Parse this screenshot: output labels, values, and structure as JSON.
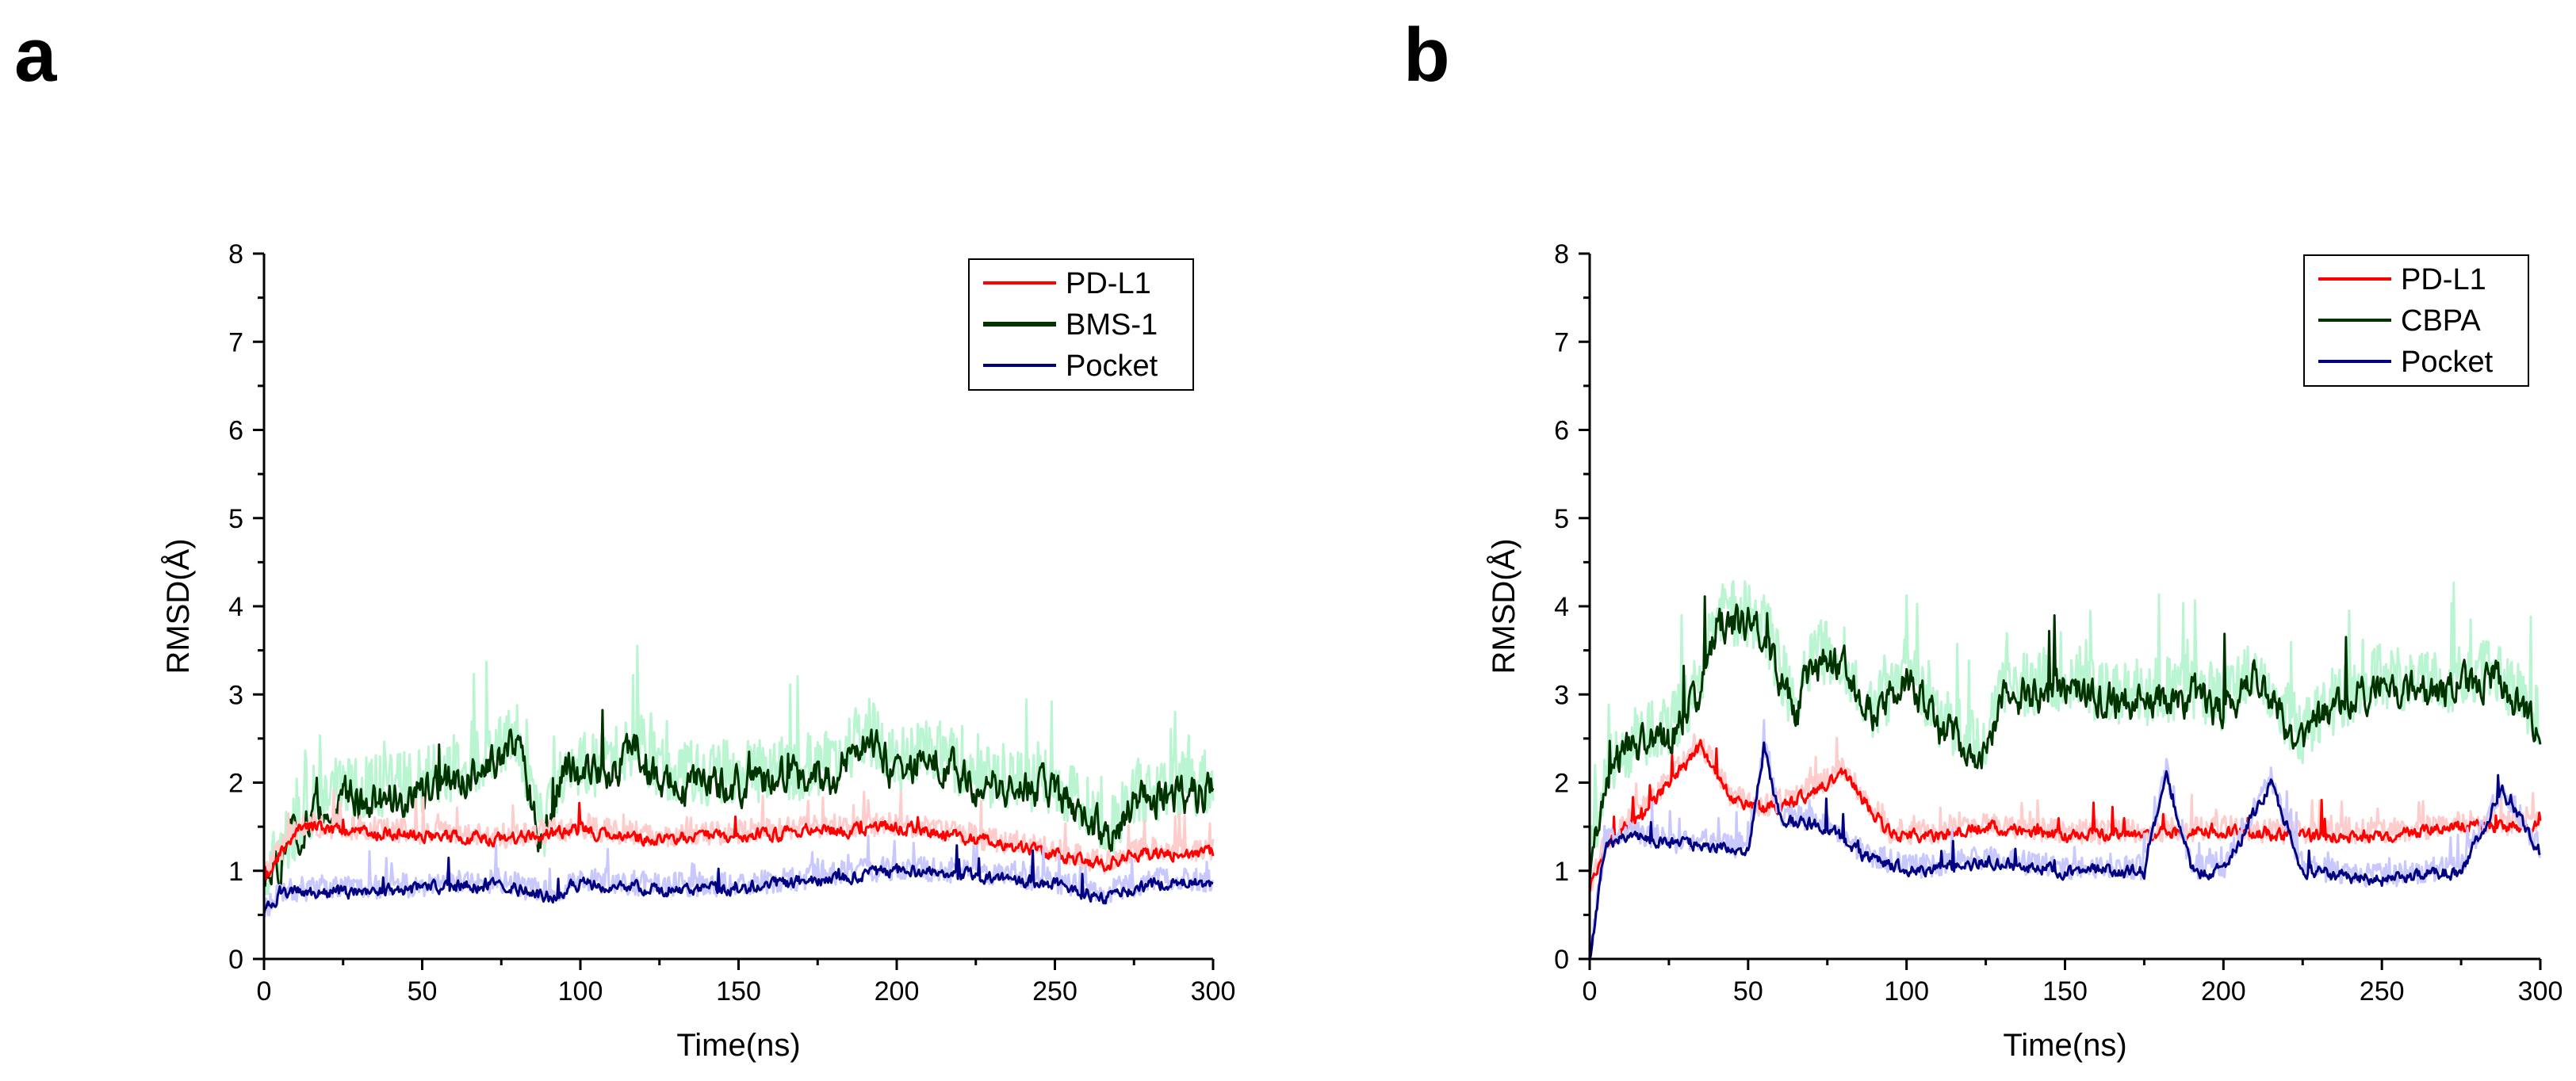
{
  "panel_labels": [
    "a",
    "b"
  ],
  "chart_data": [
    {
      "panel": "a",
      "type": "line",
      "xlabel": "Time(ns)",
      "ylabel": "RMSD(Å)",
      "xlim": [
        0,
        300
      ],
      "ylim": [
        0,
        8
      ],
      "xticks": [
        0,
        50,
        100,
        150,
        200,
        250,
        300
      ],
      "yticks": [
        0,
        1,
        2,
        3,
        4,
        5,
        6,
        7,
        8
      ],
      "grid": false,
      "legend_position": "top-right",
      "series": [
        {
          "name": "PD-L1",
          "color": "#ff0000",
          "band_color": "#ffcccc",
          "x": [
            0,
            5,
            12,
            25,
            50,
            75,
            100,
            125,
            150,
            175,
            200,
            225,
            250,
            265,
            275,
            300
          ],
          "y": [
            0.9,
            1.2,
            1.5,
            1.45,
            1.4,
            1.35,
            1.45,
            1.35,
            1.4,
            1.45,
            1.5,
            1.35,
            1.2,
            1.05,
            1.2,
            1.2
          ]
        },
        {
          "name": "BMS-1",
          "color": "#003300",
          "band_color": "#b8f5d0",
          "x": [
            0,
            5,
            10,
            20,
            25,
            30,
            50,
            70,
            80,
            88,
            95,
            110,
            118,
            125,
            150,
            180,
            190,
            200,
            210,
            225,
            250,
            268,
            275,
            300
          ],
          "y": [
            0.9,
            1.1,
            1.4,
            1.7,
            1.9,
            1.8,
            1.9,
            2.2,
            2.4,
            1.3,
            2.1,
            2.1,
            2.4,
            2.0,
            2.0,
            2.1,
            2.5,
            2.1,
            2.3,
            2.0,
            1.9,
            1.4,
            1.8,
            1.9
          ]
        },
        {
          "name": "Pocket",
          "color": "#000080",
          "band_color": "#c8c8ff",
          "x": [
            0,
            5,
            20,
            50,
            75,
            90,
            100,
            125,
            150,
            175,
            200,
            225,
            250,
            265,
            280,
            300
          ],
          "y": [
            0.5,
            0.75,
            0.75,
            0.8,
            0.85,
            0.7,
            0.85,
            0.8,
            0.8,
            0.9,
            1.0,
            0.95,
            0.85,
            0.7,
            0.85,
            0.85
          ]
        }
      ]
    },
    {
      "panel": "b",
      "type": "line",
      "xlabel": "Time(ns)",
      "ylabel": "RMSD(Å)",
      "xlim": [
        0,
        300
      ],
      "ylim": [
        0,
        8
      ],
      "xticks": [
        0,
        50,
        100,
        150,
        200,
        250,
        300
      ],
      "yticks": [
        0,
        1,
        2,
        3,
        4,
        5,
        6,
        7,
        8
      ],
      "grid": false,
      "legend_position": "top-right",
      "series": [
        {
          "name": "PD-L1",
          "color": "#ff0000",
          "band_color": "#ffcccc",
          "x": [
            0,
            5,
            15,
            25,
            35,
            45,
            55,
            65,
            80,
            95,
            110,
            125,
            150,
            175,
            200,
            215,
            230,
            250,
            275,
            300
          ],
          "y": [
            0.8,
            1.3,
            1.6,
            2.0,
            2.4,
            1.8,
            1.7,
            1.8,
            2.1,
            1.4,
            1.4,
            1.5,
            1.4,
            1.4,
            1.45,
            1.4,
            1.4,
            1.4,
            1.5,
            1.5
          ]
        },
        {
          "name": "CBPA",
          "color": "#003300",
          "band_color": "#b8f5d0",
          "x": [
            0,
            5,
            15,
            25,
            35,
            40,
            50,
            55,
            65,
            70,
            80,
            90,
            100,
            110,
            125,
            130,
            150,
            175,
            190,
            200,
            210,
            225,
            230,
            240,
            250,
            270,
            285,
            300
          ],
          "y": [
            1.0,
            2.1,
            2.4,
            2.5,
            3.0,
            3.8,
            3.8,
            3.7,
            2.7,
            3.4,
            3.3,
            2.7,
            3.2,
            2.6,
            2.3,
            3.0,
            3.0,
            2.9,
            3.0,
            2.8,
            3.2,
            2.4,
            2.7,
            2.9,
            3.1,
            3.0,
            3.2,
            2.6
          ]
        },
        {
          "name": "Pocket",
          "color": "#000080",
          "band_color": "#c8c8ff",
          "x": [
            0,
            5,
            15,
            25,
            40,
            50,
            55,
            60,
            75,
            85,
            100,
            125,
            150,
            175,
            182,
            190,
            200,
            215,
            225,
            250,
            275,
            288,
            300
          ],
          "y": [
            0.0,
            1.3,
            1.4,
            1.3,
            1.3,
            1.2,
            2.4,
            1.6,
            1.5,
            1.2,
            1.0,
            1.1,
            1.0,
            1.0,
            2.1,
            1.0,
            1.0,
            2.0,
            1.0,
            0.9,
            1.0,
            1.9,
            1.2
          ]
        }
      ]
    }
  ]
}
